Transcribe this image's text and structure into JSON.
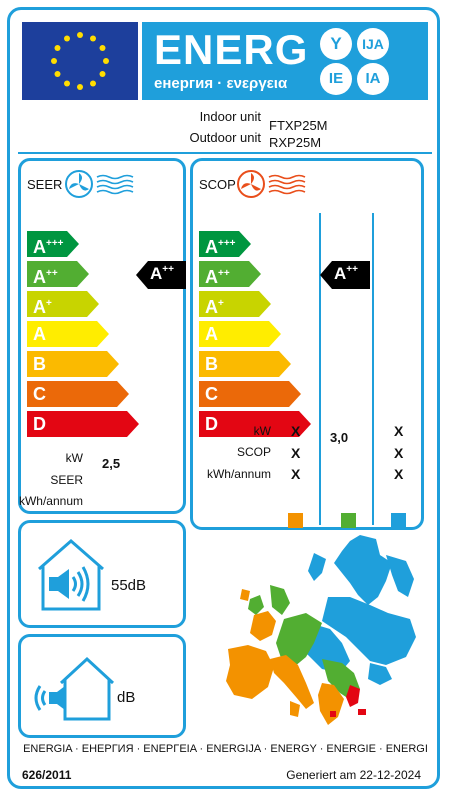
{
  "header": {
    "energy_word": "ENERG",
    "energy_sub": "енергия · ενεργεια",
    "languages": [
      "Y",
      "IJA",
      "IE",
      "IA"
    ]
  },
  "units": {
    "indoor_label": "Indoor unit",
    "indoor_value": "FTXP25M",
    "outdoor_label": "Outdoor unit",
    "outdoor_value": "RXP25M"
  },
  "cooling": {
    "title": "SEER",
    "scale": [
      {
        "letter": "A",
        "sup": "+++",
        "color": "#009640"
      },
      {
        "letter": "A",
        "sup": "++",
        "color": "#52ae32"
      },
      {
        "letter": "A",
        "sup": "+",
        "color": "#c8d400"
      },
      {
        "letter": "A",
        "sup": "",
        "color": "#ffed00"
      },
      {
        "letter": "B",
        "sup": "",
        "color": "#fbba00"
      },
      {
        "letter": "C",
        "sup": "",
        "color": "#eb6909"
      },
      {
        "letter": "D",
        "sup": "",
        "color": "#e30613"
      }
    ],
    "rating_letter": "A",
    "rating_sup": "++",
    "labels": [
      "kW",
      "SEER",
      "kWh/annum"
    ],
    "kw_value": "2,5"
  },
  "heating": {
    "title": "SCOP",
    "rating_letter": "A",
    "rating_sup": "++",
    "labels": [
      "kW",
      "SCOP",
      "kWh/annum"
    ],
    "zone_values": {
      "warmer": [
        "X",
        "X",
        "X"
      ],
      "average": "3,0",
      "colder": [
        "X",
        "X",
        "X"
      ]
    },
    "zone_colors": [
      "#f39200",
      "#52ae32",
      "#1f9fdb"
    ]
  },
  "noise": {
    "indoor": "55dB",
    "outdoor": "dB"
  },
  "footer": {
    "languages": "ENERGIA · ЕНЕРГИЯ · ΕΝΕΡΓΕΙΑ · ENERGIJA · ENERGY · ENERGIE · ENERGI",
    "regulation": "626/2011",
    "generated": "Generiert am 22-12-2024"
  }
}
